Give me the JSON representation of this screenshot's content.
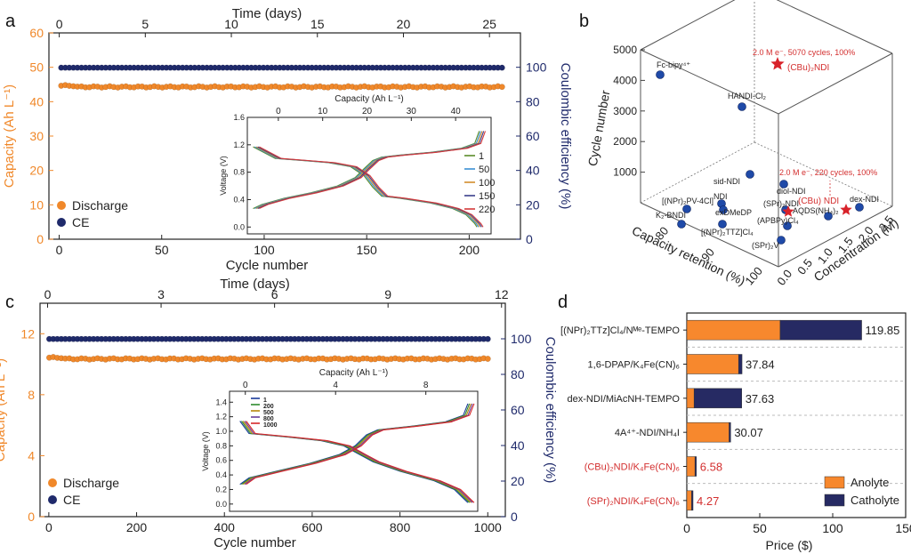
{
  "panels": {
    "a": "a",
    "b": "b",
    "c": "c",
    "d": "d"
  },
  "colors": {
    "orange": "#f0882a",
    "navy": "#1f2a6b",
    "anolyte": "#f7882d",
    "catholyte": "#262a63",
    "red_label": "#d32f2f",
    "blue_point": "#1f4aa8",
    "star": "#d8222a"
  },
  "chart_data": [
    {
      "id": "a-main",
      "type": "scatter",
      "xlabel": "Cycle number",
      "ylabel": "Capacity (Ah L⁻¹)",
      "y2label": "Coulombic efficiency (%)",
      "top_axis_label": "Time (days)",
      "xlim": [
        -5,
        225
      ],
      "ylim": [
        0,
        60
      ],
      "y2lim": [
        0,
        120
      ],
      "xticks": [
        0,
        50,
        100,
        150,
        200
      ],
      "yticks": [
        0,
        10,
        20,
        30,
        40,
        50,
        60
      ],
      "y2ticks": [
        0,
        20,
        40,
        60,
        80,
        100
      ],
      "top_xlim": [
        -0.6,
        26.8
      ],
      "top_ticks": [
        0,
        5,
        10,
        15,
        20,
        25
      ],
      "series": [
        {
          "name": "Discharge",
          "x_range": [
            1,
            216
          ],
          "value": 44.3,
          "axis": "left",
          "color": "#f0882a"
        },
        {
          "name": "CE",
          "x_range": [
            1,
            216
          ],
          "value": 99.8,
          "axis": "right",
          "color": "#1f2a6b"
        }
      ],
      "legend": [
        "Discharge",
        "CE"
      ],
      "legend_position": "bottom-left"
    },
    {
      "id": "a-inset",
      "type": "line",
      "xlabel": "Capacity (Ah L⁻¹)",
      "ylabel": "Voltage (V)",
      "xlim": [
        -7,
        48
      ],
      "ylim": [
        -0.1,
        1.6
      ],
      "xticks": [
        0,
        10,
        20,
        30,
        40
      ],
      "yticks": [
        0.0,
        0.4,
        0.8,
        1.2,
        1.6
      ],
      "yticklabels": [
        "0.0",
        "0.4",
        "0.8",
        "1.2",
        "1.6"
      ],
      "series": [
        {
          "name": "1",
          "color": "#5b8c2a"
        },
        {
          "name": "50",
          "color": "#3b8fd4"
        },
        {
          "name": "100",
          "color": "#d28d2c"
        },
        {
          "name": "150",
          "color": "#3a3f8c"
        },
        {
          "name": "220",
          "color": "#d43a3a"
        }
      ],
      "charge_curve": [
        [
          -5,
          0.27
        ],
        [
          -3,
          0.33
        ],
        [
          2,
          0.42
        ],
        [
          8,
          0.5
        ],
        [
          14,
          0.6
        ],
        [
          18,
          0.72
        ],
        [
          20,
          0.85
        ],
        [
          22,
          0.97
        ],
        [
          24,
          1.02
        ],
        [
          28,
          1.05
        ],
        [
          35,
          1.09
        ],
        [
          42,
          1.15
        ],
        [
          45,
          1.22
        ],
        [
          46,
          1.4
        ]
      ],
      "discharge_curve": [
        [
          -5,
          1.17
        ],
        [
          0,
          1.0
        ],
        [
          6,
          0.97
        ],
        [
          12,
          0.94
        ],
        [
          17,
          0.88
        ],
        [
          20,
          0.75
        ],
        [
          22,
          0.58
        ],
        [
          24,
          0.45
        ],
        [
          28,
          0.42
        ],
        [
          35,
          0.35
        ],
        [
          40,
          0.27
        ],
        [
          43,
          0.18
        ],
        [
          45,
          0.05
        ],
        [
          45.5,
          0.0
        ]
      ]
    },
    {
      "id": "b",
      "type": "scatter",
      "title": "",
      "axes": [
        "Capacity retention (%)",
        "Concentration (M)",
        "Cycle number"
      ],
      "cycle_ticks": [
        1000,
        2000,
        3000,
        4000,
        5000
      ],
      "retention_ticks": [
        80,
        90,
        100
      ],
      "concentration_ticks": [
        "0.0",
        "0.5",
        "1.0",
        "1.5",
        "2.0",
        "2.5"
      ],
      "points": [
        {
          "label": "Fc-bipy⁴⁺",
          "cycles": 4200,
          "kind": "ref"
        },
        {
          "label": "HANDI-Cl₂",
          "cycles": 3300,
          "kind": "ref"
        },
        {
          "label": "sid-NDI",
          "cycles": 1000,
          "kind": "ref"
        },
        {
          "label": "diol-NDI",
          "cycles": 700,
          "kind": "ref"
        },
        {
          "label": "[(NPr)₂PV-4Cl]",
          "cycles": 500,
          "kind": "ref"
        },
        {
          "label": "NDI",
          "cycles": 500,
          "kind": "ref"
        },
        {
          "label": "exDMeDP",
          "cycles": 400,
          "kind": "ref"
        },
        {
          "label": "K₂-BNDI",
          "cycles": 300,
          "kind": "ref"
        },
        {
          "label": "(SPr)₂NDI",
          "cycles": 300,
          "kind": "ref"
        },
        {
          "label": "(APBPy)Cl₄",
          "cycles": 250,
          "kind": "ref"
        },
        {
          "label": "AQDS(NH₄)₂",
          "cycles": 250,
          "kind": "ref"
        },
        {
          "label": "dex-NDI",
          "cycles": 300,
          "kind": "ref"
        },
        {
          "label": "[(NPr)₂TTZ]Cl₄",
          "cycles": 200,
          "kind": "ref"
        },
        {
          "label": "(SPr)₂V",
          "cycles": 100,
          "kind": "ref"
        },
        {
          "label": "(CBu)₂NDI",
          "cycles": 5070,
          "kind": "this_work"
        },
        {
          "label": "(CBu) NDI",
          "cycles": 220,
          "kind": "this_work"
        }
      ],
      "annotations": [
        "2.0 M e⁻, 5070 cycles, 100%",
        "2.0 M e⁻, 220 cycles, 100%"
      ]
    },
    {
      "id": "c-main",
      "type": "scatter",
      "xlabel": "Cycle number",
      "ylabel": "Capacity (Ah L⁻¹)",
      "y2label": "Coulombic efficiency (%)",
      "top_axis_label": "Time (days)",
      "xlim": [
        -20,
        1040
      ],
      "ylim": [
        0,
        14
      ],
      "y2lim": [
        0,
        120
      ],
      "xticks": [
        0,
        200,
        400,
        600,
        800,
        1000
      ],
      "yticks": [
        0,
        4,
        8,
        12
      ],
      "y2ticks": [
        0,
        20,
        40,
        60,
        80,
        100
      ],
      "top_xlim": [
        -0.2,
        12.1
      ],
      "top_ticks": [
        0,
        3,
        6,
        9,
        12
      ],
      "series": [
        {
          "name": "Discharge",
          "x_range": [
            1,
            1000
          ],
          "value": 10.35,
          "axis": "left",
          "color": "#f0882a"
        },
        {
          "name": "CE",
          "x_range": [
            1,
            1000
          ],
          "value": 99.9,
          "axis": "right",
          "color": "#1f2a6b"
        }
      ],
      "legend": [
        "Discharge",
        "CE"
      ],
      "legend_position": "bottom-left"
    },
    {
      "id": "c-inset",
      "type": "line",
      "xlabel": "Capacity (Ah L⁻¹)",
      "ylabel": "Voltage (V)",
      "xlim": [
        -0.7,
        10.3
      ],
      "ylim": [
        -0.1,
        1.55
      ],
      "xticks": [
        0,
        4,
        8
      ],
      "yticks": [
        0.0,
        0.2,
        0.4,
        0.6,
        0.8,
        1.0,
        1.2,
        1.4
      ],
      "yticklabels": [
        "0.0",
        "0.2",
        "0.4",
        "0.6",
        "0.8",
        "1.0",
        "1.2",
        "1.4"
      ],
      "series": [
        {
          "name": "1",
          "color": "#1a3a9a"
        },
        {
          "name": "200",
          "color": "#2d8a2d"
        },
        {
          "name": "500",
          "color": "#b8860b"
        },
        {
          "name": "800",
          "color": "#6a3d9a"
        },
        {
          "name": "1000",
          "color": "#d62728"
        }
      ],
      "charge_curve": [
        [
          -0.1,
          0.27
        ],
        [
          0.3,
          0.36
        ],
        [
          1.5,
          0.45
        ],
        [
          3,
          0.56
        ],
        [
          4.3,
          0.68
        ],
        [
          5.0,
          0.8
        ],
        [
          5.5,
          0.95
        ],
        [
          6,
          1.02
        ],
        [
          7.5,
          1.07
        ],
        [
          9,
          1.13
        ],
        [
          9.8,
          1.22
        ],
        [
          10,
          1.38
        ]
      ],
      "discharge_curve": [
        [
          -0.1,
          1.14
        ],
        [
          0.3,
          0.97
        ],
        [
          2,
          0.92
        ],
        [
          3.5,
          0.87
        ],
        [
          4.5,
          0.8
        ],
        [
          5.2,
          0.68
        ],
        [
          5.8,
          0.58
        ],
        [
          7,
          0.45
        ],
        [
          8.5,
          0.32
        ],
        [
          9.4,
          0.2
        ],
        [
          9.8,
          0.08
        ],
        [
          10,
          0.02
        ]
      ]
    },
    {
      "id": "d",
      "type": "bar",
      "orientation": "horizontal",
      "stacked": true,
      "xlabel": "Price ($)",
      "xlim": [
        0,
        150
      ],
      "xticks": [
        0,
        50,
        100,
        150
      ],
      "categories": [
        "[(NPr)₂TTz]Cl₄/Nᴹᵉ-TEMPO",
        "1,6-DPAP/K₄Fe(CN)₆",
        "dex-NDI/MiAcNH-TEMPO",
        "4A⁴⁺-NDI/NH₄I",
        "(CBu)₂NDI/K₄Fe(CN)₆",
        "(SPr)₂NDI/K₄Fe(CN)₆"
      ],
      "category_highlight": [
        false,
        false,
        false,
        false,
        true,
        true
      ],
      "series": [
        {
          "name": "Anolyte",
          "values": [
            64.0,
            35.5,
            5.0,
            29.0,
            5.6,
            3.3
          ]
        },
        {
          "name": "Catholyte",
          "values": [
            55.85,
            2.34,
            32.63,
            1.07,
            0.98,
            0.97
          ]
        }
      ],
      "totals": [
        "119.85",
        "37.84",
        "37.63",
        "30.07",
        "6.58",
        "4.27"
      ],
      "legend": [
        "Anolyte",
        "Catholyte"
      ],
      "legend_position": "bottom-right"
    }
  ]
}
